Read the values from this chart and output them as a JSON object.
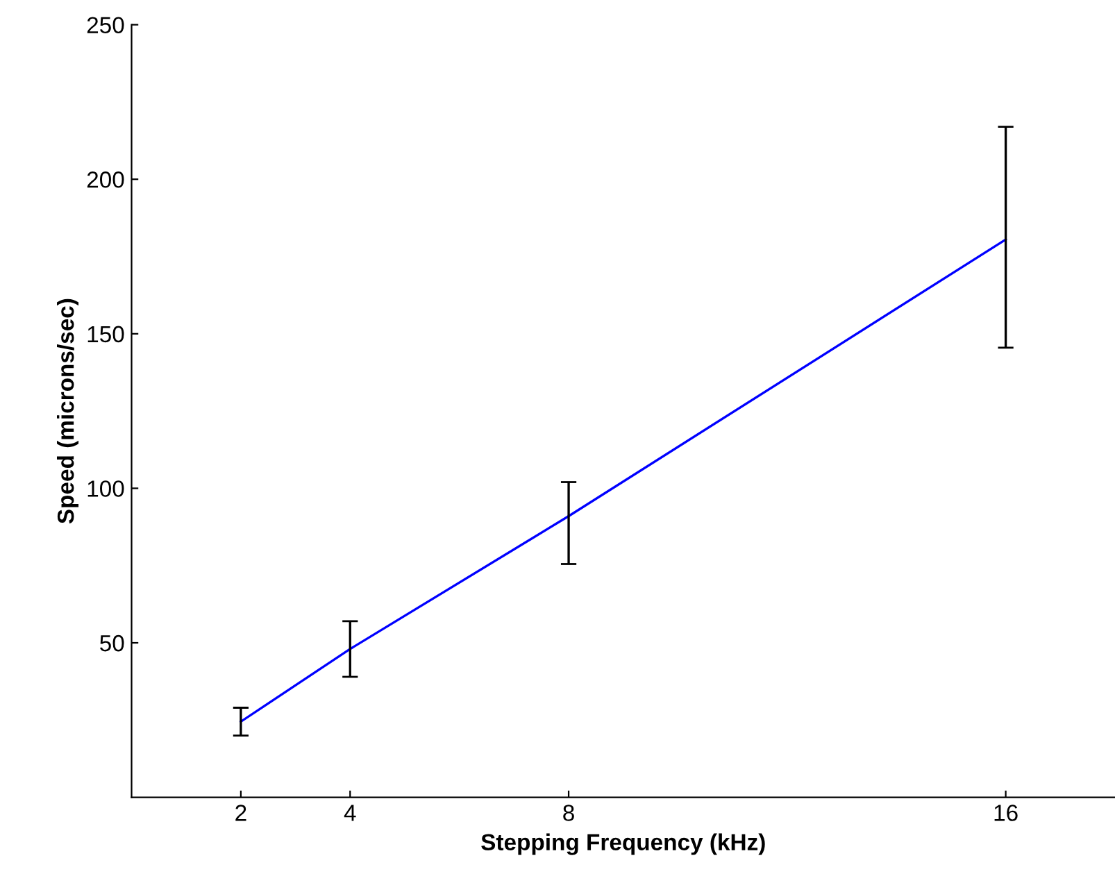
{
  "chart_data": {
    "type": "line",
    "xlabel": "Stepping Frequency (kHz)",
    "ylabel": "Speed (microns/sec)",
    "x": [
      2,
      4,
      8,
      16
    ],
    "series": [
      {
        "color": "#0000ff",
        "values": [
          24.5,
          48,
          91,
          180.5
        ],
        "errors": [
          [
            20,
            29
          ],
          [
            39,
            57
          ],
          [
            75.5,
            102
          ],
          [
            145.5,
            217
          ]
        ]
      }
    ],
    "xlim": [
      0,
      18
    ],
    "ylim": [
      0,
      250
    ],
    "xticks": [
      2,
      4,
      8,
      16
    ],
    "yticks": [
      50,
      100,
      150,
      200,
      250
    ],
    "grid": false
  }
}
